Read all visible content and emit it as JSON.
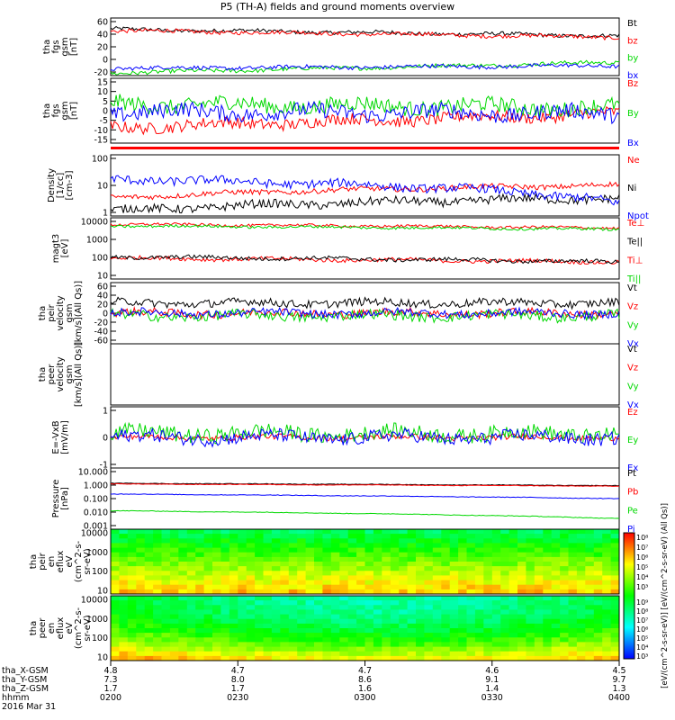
{
  "title": "P5 (TH-A) fields and ground moments overview",
  "colors": {
    "black": "#000000",
    "red": "#ff0000",
    "green": "#00d800",
    "blue": "#0000ff"
  },
  "chart_data": [
    {
      "type": "line",
      "ylabel_lines": [
        "tha",
        "fgs",
        "gsm",
        "[nT]"
      ],
      "yticks": [
        "60",
        "40",
        "20",
        "0",
        "-20"
      ],
      "ylim": [
        -25,
        62
      ],
      "series": [
        {
          "name": "Bt",
          "color": "#000000",
          "base": 45,
          "end": 35,
          "amp": 3
        },
        {
          "name": "bz",
          "color": "#ff0000",
          "base": 43,
          "end": 33,
          "amp": 3
        },
        {
          "name": "by",
          "color": "#00d800",
          "base": -21,
          "end": -5,
          "amp": 3
        },
        {
          "name": "bx",
          "color": "#0000ff",
          "base": -14,
          "end": -10,
          "amp": 3
        }
      ]
    },
    {
      "type": "line",
      "ylabel_lines": [
        "tha",
        "fgs",
        "gsm",
        "[nT]"
      ],
      "yticks": [
        "15",
        "10",
        "5",
        "0",
        "-5",
        "-10",
        "-15"
      ],
      "ylim": [
        -18,
        15
      ],
      "series": [
        {
          "name": "Bz",
          "color": "#ff0000",
          "base": -10,
          "end": -3,
          "amp": 3
        },
        {
          "name": "By",
          "color": "#00d800",
          "base": 2,
          "end": 0,
          "amp": 4
        },
        {
          "name": "Bx",
          "color": "#0000ff",
          "base": -2,
          "end": -3,
          "amp": 4
        }
      ]
    },
    {
      "type": "line",
      "log": true,
      "ylabel_lines": [
        "Density",
        "[1/cc]",
        "[cm-3]"
      ],
      "yticks": [
        "100",
        "10",
        "1"
      ],
      "ylim": [
        0.3,
        200
      ],
      "series": [
        {
          "name": "Ne",
          "color": "#ff0000",
          "base": 2,
          "end": 8,
          "amp": 0.3
        },
        {
          "name": "Ni",
          "color": "#000000",
          "base": 0.5,
          "end": 2,
          "amp": 0.5
        },
        {
          "name": "Npot",
          "color": "#0000ff",
          "base": 15,
          "end": 1,
          "amp": 0.5
        }
      ]
    },
    {
      "type": "line",
      "log": true,
      "ylabel_lines": [
        "magt3",
        "[eV]"
      ],
      "yticks": [
        "10000",
        "1000",
        "100",
        "10"
      ],
      "ylim": [
        3,
        12000
      ],
      "series": [
        {
          "name": "Te⊥",
          "color": "#ff0000",
          "base": 50,
          "end": 30,
          "amp": 0.3
        },
        {
          "name": "Te||",
          "color": "#000000",
          "base": 60,
          "end": 30,
          "amp": 0.3
        },
        {
          "name": "Ti⊥",
          "color": "#ff0000",
          "base": 5000,
          "end": 3000,
          "amp": 0.2
        },
        {
          "name": "Ti||",
          "color": "#00d800",
          "base": 4000,
          "end": 2500,
          "amp": 0.2
        }
      ]
    },
    {
      "type": "line",
      "ylabel_lines": [
        "tha",
        "peir",
        "velocity",
        "gsm",
        "[km/s](All Qs)]"
      ],
      "yticks": [
        "60",
        "40",
        "20",
        "0",
        "-20",
        "-40",
        "-60"
      ],
      "ylim": [
        -60,
        60
      ],
      "series": [
        {
          "name": "Vt",
          "color": "#000000",
          "base": 20,
          "end": 20,
          "amp": 8
        },
        {
          "name": "Vz",
          "color": "#ff0000",
          "base": 0,
          "end": 0,
          "amp": 8
        },
        {
          "name": "Vy",
          "color": "#00d800",
          "base": -5,
          "end": -5,
          "amp": 10
        },
        {
          "name": "Vx",
          "color": "#0000ff",
          "base": 0,
          "end": 0,
          "amp": 8
        }
      ]
    },
    {
      "type": "line",
      "ylabel_lines": [
        "tha",
        "peer",
        "velocity",
        "gsm",
        "[km/s](All Qs)]"
      ],
      "yticks": [],
      "ylim": [
        -1,
        1
      ],
      "series": [
        {
          "name": "Vt",
          "color": "#000000"
        },
        {
          "name": "Vz",
          "color": "#ff0000"
        },
        {
          "name": "Vy",
          "color": "#00d800"
        },
        {
          "name": "Vx",
          "color": "#0000ff"
        }
      ]
    },
    {
      "type": "line",
      "ylabel_lines": [
        "E=-VxB",
        "[mV/m]"
      ],
      "yticks": [
        "1",
        "0",
        "-1"
      ],
      "ylim": [
        -1.6,
        1.6
      ],
      "series": [
        {
          "name": "Ez",
          "color": "#ff0000",
          "base": 0,
          "end": 0,
          "amp": 0.15
        },
        {
          "name": "Ey",
          "color": "#00d800",
          "base": 0.2,
          "end": 0.2,
          "amp": 0.4
        },
        {
          "name": "Ex",
          "color": "#0000ff",
          "base": 0,
          "end": 0,
          "amp": 0.35
        }
      ]
    },
    {
      "type": "line",
      "log": true,
      "ylabel_lines": [
        "Pressure",
        "[nPa]"
      ],
      "yticks": [
        "10.000",
        "1.000",
        "0.100",
        "0.010",
        "0.001"
      ],
      "ylim": [
        0.001,
        10
      ],
      "series": [
        {
          "name": "Pt",
          "color": "#000000",
          "base": 1.0,
          "end": 0.7,
          "amp": 0.05
        },
        {
          "name": "Pb",
          "color": "#ff0000",
          "base": 0.9,
          "end": 0.65,
          "amp": 0.05
        },
        {
          "name": "Pe",
          "color": "#00d800",
          "base": 0.016,
          "end": 0.005,
          "amp": 0.05
        },
        {
          "name": "Pi",
          "color": "#0000ff",
          "base": 0.2,
          "end": 0.1,
          "amp": 0.05
        }
      ]
    },
    {
      "type": "heatmap",
      "ylabel_lines": [
        "tha",
        "peir",
        "en",
        "eflux",
        "eV",
        "(cm^2-s-",
        "sr-eV)"
      ],
      "yticks": [
        "10000",
        "1000",
        "100",
        "10"
      ],
      "colorbar_ticks": [
        "10⁸",
        "10⁷",
        "10⁶",
        "10⁵",
        "10⁴",
        "10³"
      ]
    },
    {
      "type": "heatmap",
      "ylabel_lines": [
        "tha",
        "peer",
        "en",
        "eflux",
        "eV",
        "(cm^2-s-",
        "sr-eV)"
      ],
      "yticks": [
        "10000",
        "1000",
        "100",
        "10"
      ],
      "colorbar_ticks": [
        "10⁹",
        "10⁸",
        "10⁷",
        "10⁶",
        "10⁵",
        "10⁴",
        "10³"
      ]
    }
  ],
  "colorbar_label": "[eV/(cm^2-s-sr-eV)] [eV/(cm^2-s-sr-eV) (All Qs)]",
  "xaxis": {
    "rows": [
      {
        "name": "tha_X-GSM",
        "values": [
          "4.8",
          "4.7",
          "4.7",
          "4.6",
          "4.5"
        ]
      },
      {
        "name": "tha_Y-GSM",
        "values": [
          "7.3",
          "8.0",
          "8.6",
          "9.1",
          "9.7"
        ]
      },
      {
        "name": "tha_Z-GSM",
        "values": [
          "1.7",
          "1.7",
          "1.6",
          "1.4",
          "1.3"
        ]
      },
      {
        "name": "hhmm",
        "values": [
          "0200",
          "0230",
          "0300",
          "0330",
          "0400"
        ]
      }
    ],
    "date": "2016 Mar 31"
  }
}
